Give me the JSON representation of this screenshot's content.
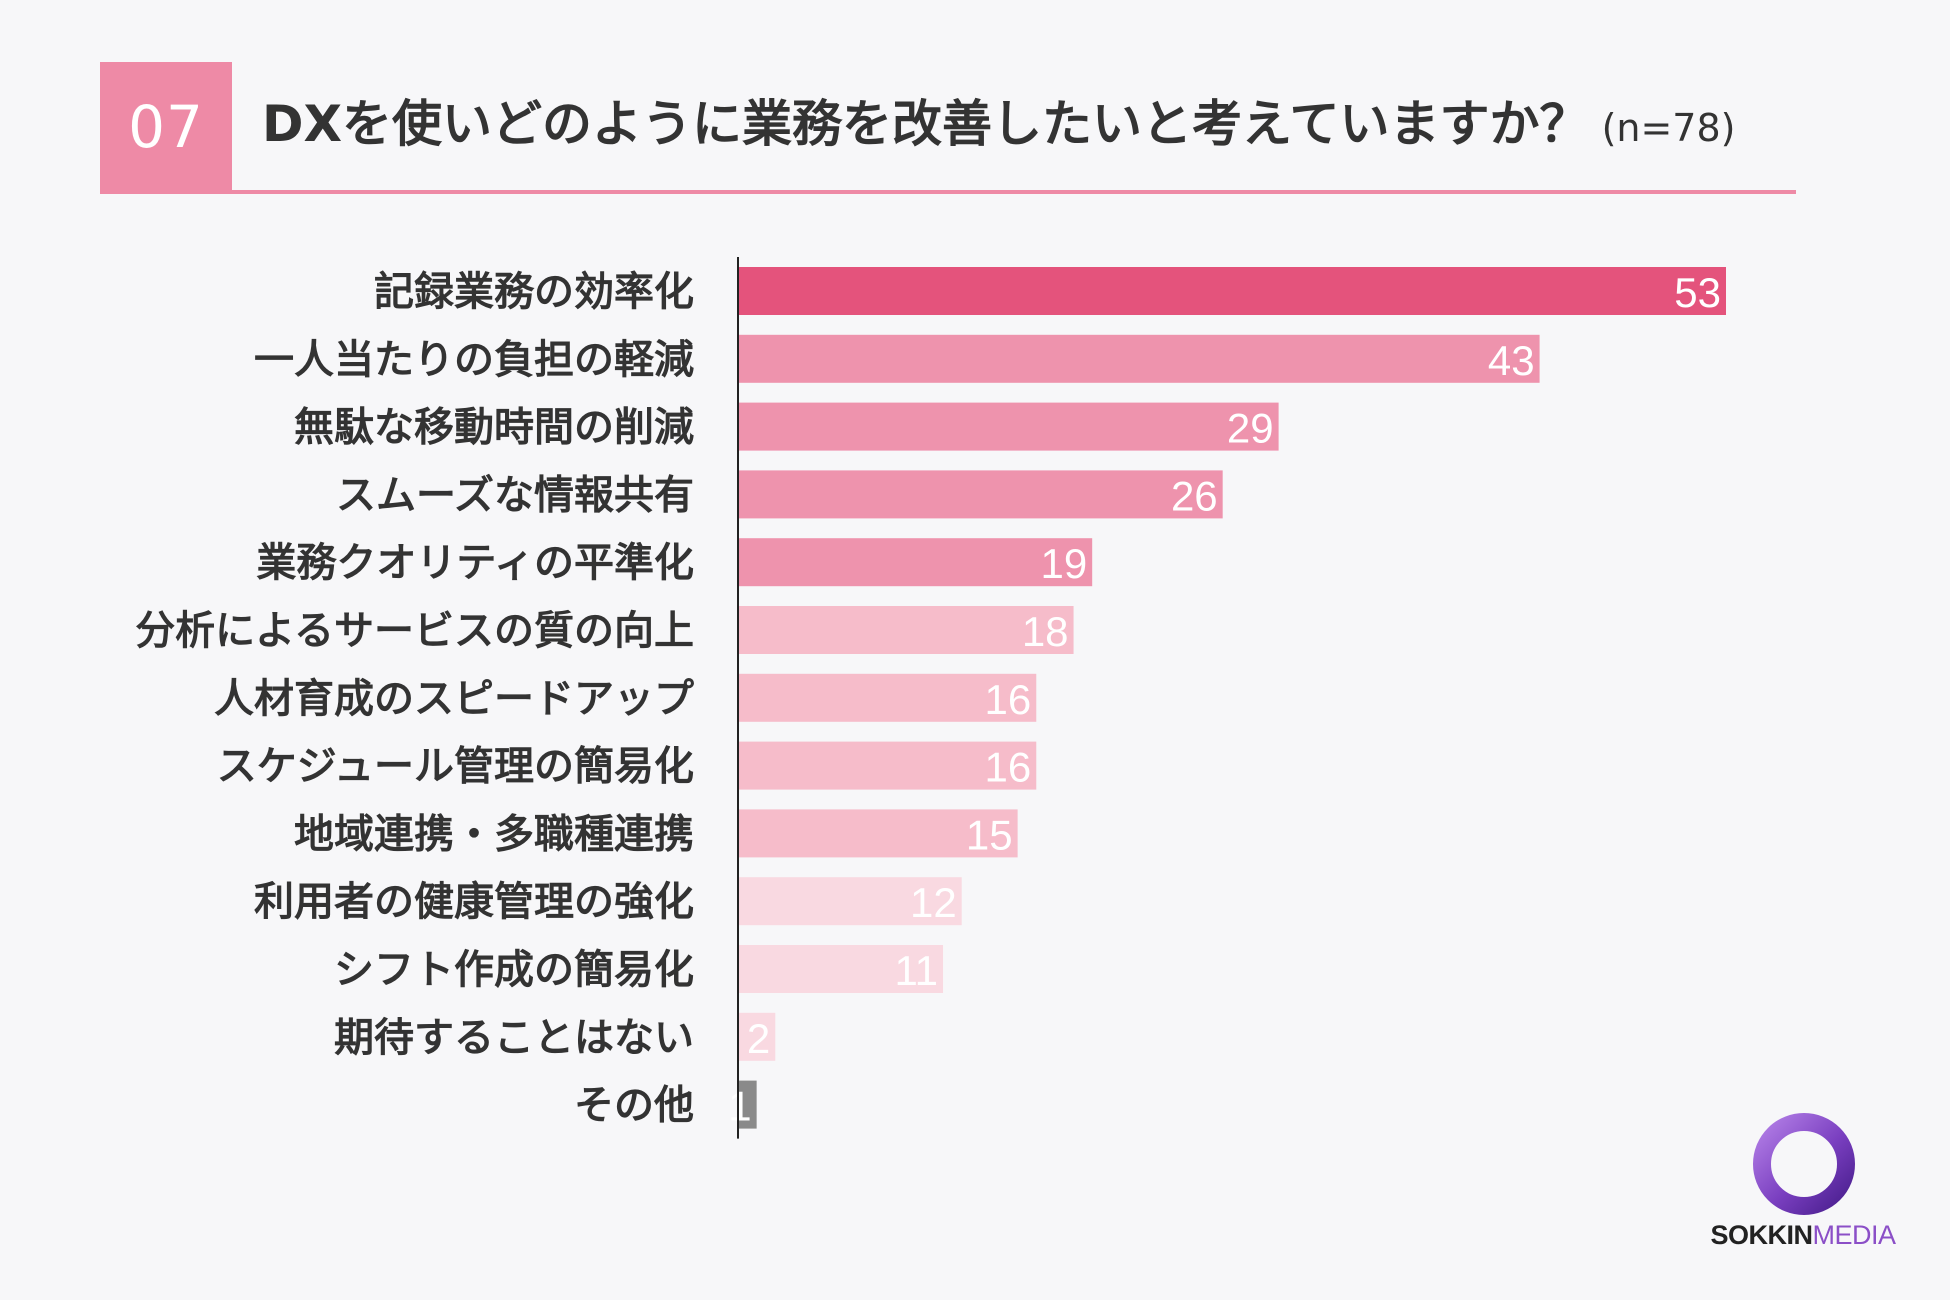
{
  "header": {
    "number": "07",
    "title": "DXを使いどのように業務を改善したいと考えていますか？",
    "sample_size": "(n=78)"
  },
  "colors": {
    "accent": "#ee8aa6",
    "bar_strong": "#e4537c",
    "bar_medium": "#ee93ad",
    "bar_light": "#f6bcca",
    "bar_pale": "#f9d9e1",
    "bar_gray": "#8a8a8a"
  },
  "chart_data": {
    "type": "bar",
    "orientation": "horizontal",
    "title": "DXを使いどのように業務を改善したいと考えていますか？",
    "categories": [
      "記録業務の効率化",
      "一人当たりの負担の軽減",
      "無駄な移動時間の削減",
      "スムーズな情報共有",
      "業務クオリティの平準化",
      "分析によるサービスの質の向上",
      "人材育成のスピードアップ",
      "スケジュール管理の簡易化",
      "地域連携・多職種連携",
      "利用者の健康管理の強化",
      "シフト作成の簡易化",
      "期待することはない",
      "その他"
    ],
    "values": [
      53,
      43,
      29,
      26,
      19,
      18,
      16,
      16,
      15,
      12,
      11,
      2,
      1
    ],
    "xlim": [
      0,
      53
    ],
    "grid": false,
    "legend": "none"
  },
  "logo": {
    "bold": "SOKKIN",
    "light": "MEDIA"
  }
}
